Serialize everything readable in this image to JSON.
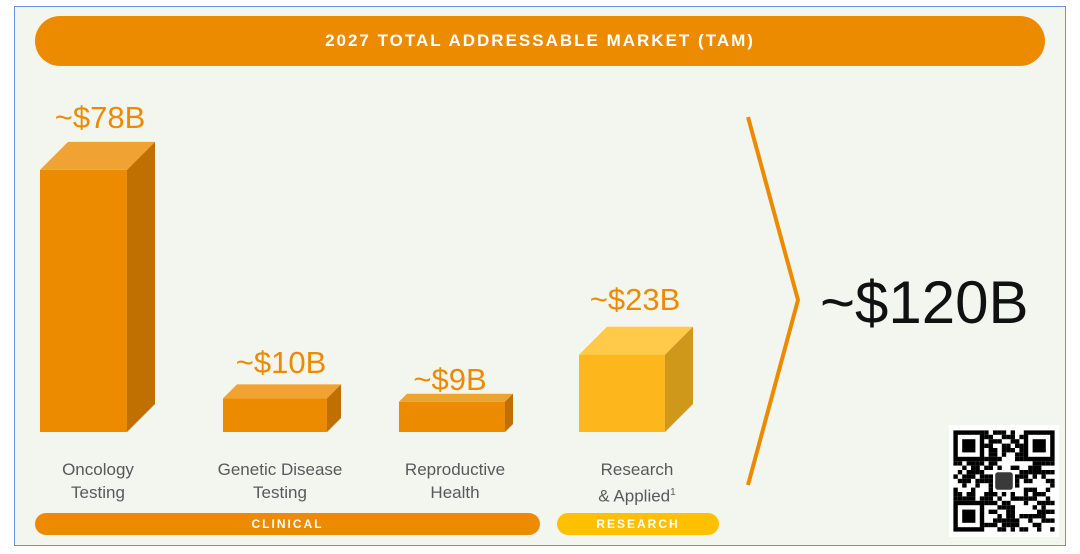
{
  "header": {
    "title": "2027 TOTAL ADDRESSABLE MARKET (TAM)"
  },
  "chart_data": {
    "type": "bar",
    "title": "2027 TOTAL ADDRESSABLE MARKET (TAM)",
    "categories": [
      "Oncology Testing",
      "Genetic Disease Testing",
      "Reproductive Health",
      "Research & Applied"
    ],
    "values": [
      78,
      10,
      9,
      23
    ],
    "unit": "$B",
    "value_labels": [
      "~$78B",
      "~$10B",
      "~$9B",
      "~$23B"
    ],
    "category_lines": [
      [
        "Oncology",
        "Testing"
      ],
      [
        "Genetic Disease",
        "Testing"
      ],
      [
        "Reproductive",
        "Health"
      ],
      [
        "Research",
        "& Applied"
      ]
    ],
    "footnote_marker": "1",
    "groups": [
      {
        "label": "CLINICAL",
        "color": "#ec8b00"
      },
      {
        "label": "RESEARCH",
        "color": "#ffc000"
      }
    ],
    "colors": [
      "#ec8b00",
      "#ec8b00",
      "#ec8b00",
      "#fdb71d"
    ],
    "total_label": "~$120B"
  }
}
